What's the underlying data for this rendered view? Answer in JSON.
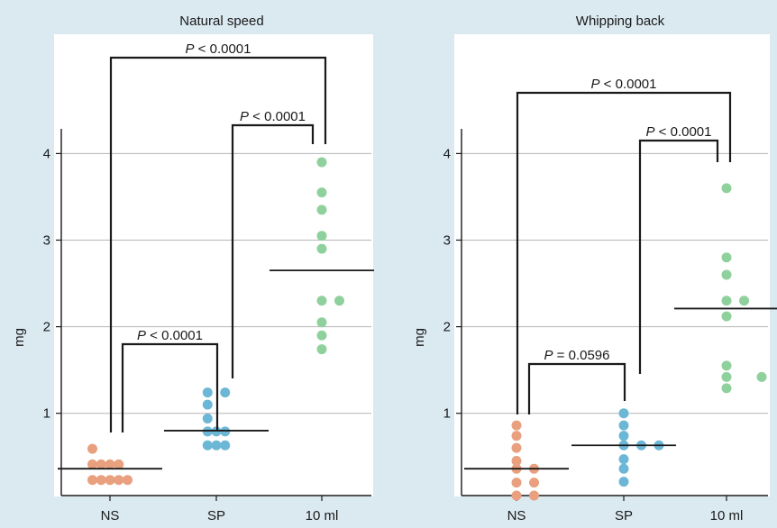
{
  "colors": {
    "background": "#dbe9f1",
    "plot_bg": "#ffffff",
    "grid": "#b5b5b5",
    "axis": "#1a1a1a",
    "ns": "#e8a07e",
    "sp": "#6cb7d6",
    "ml": "#8fd19c"
  },
  "chart_data": [
    {
      "type": "scatter",
      "title": "Natural speed",
      "ylabel": "mg",
      "categories": [
        "NS",
        "SP",
        "10 ml"
      ],
      "yticks": [
        1,
        2,
        3,
        4
      ],
      "ylim": [
        0.1,
        4.3
      ],
      "grid": true,
      "series": [
        {
          "category": "NS",
          "color": "#e8a07e",
          "points": [
            [
              -1,
              0.59
            ],
            [
              -1,
              0.41
            ],
            [
              -0.5,
              0.41
            ],
            [
              0,
              0.41
            ],
            [
              0.5,
              0.41
            ],
            [
              -1,
              0.23
            ],
            [
              -0.5,
              0.23
            ],
            [
              0,
              0.23
            ],
            [
              0.5,
              0.23
            ],
            [
              1,
              0.23
            ]
          ],
          "median": 0.36
        },
        {
          "category": "SP",
          "color": "#6cb7d6",
          "points": [
            [
              -0.5,
              1.24
            ],
            [
              0.5,
              1.24
            ],
            [
              -0.5,
              1.1
            ],
            [
              -0.5,
              0.94
            ],
            [
              -0.5,
              0.79
            ],
            [
              0,
              0.79
            ],
            [
              0.5,
              0.79
            ],
            [
              -0.5,
              0.63
            ],
            [
              0,
              0.63
            ],
            [
              0.5,
              0.63
            ]
          ],
          "median": 0.8
        },
        {
          "category": "10 ml",
          "color": "#8fd19c",
          "points": [
            [
              0,
              3.9
            ],
            [
              0,
              3.55
            ],
            [
              0,
              3.35
            ],
            [
              0,
              3.05
            ],
            [
              0,
              2.9
            ],
            [
              0,
              2.3
            ],
            [
              1,
              2.3
            ],
            [
              0,
              2.05
            ],
            [
              0,
              1.9
            ],
            [
              0,
              1.74
            ]
          ],
          "median": 2.65
        }
      ],
      "comparisons": [
        {
          "from": "NS",
          "to": "SP",
          "label_p": "P",
          "label_rest": " < 0.0001"
        },
        {
          "from": "SP",
          "to": "10 ml",
          "label_p": "P",
          "label_rest": " < 0.0001"
        },
        {
          "from": "NS",
          "to": "10 ml",
          "label_p": "P",
          "label_rest": " < 0.0001"
        }
      ]
    },
    {
      "type": "scatter",
      "title": "Whipping back",
      "ylabel": "mg",
      "categories": [
        "NS",
        "SP",
        "10 ml"
      ],
      "yticks": [
        1,
        2,
        3,
        4
      ],
      "ylim": [
        0.1,
        4.3
      ],
      "grid": true,
      "series": [
        {
          "category": "NS",
          "color": "#e8a07e",
          "points": [
            [
              0,
              0.86
            ],
            [
              0,
              0.74
            ],
            [
              0,
              0.6
            ],
            [
              0,
              0.45
            ],
            [
              0,
              0.36
            ],
            [
              1,
              0.36
            ],
            [
              0,
              0.2
            ],
            [
              1,
              0.2
            ],
            [
              0,
              0.05
            ],
            [
              1,
              0.05
            ]
          ],
          "median": 0.36
        },
        {
          "category": "SP",
          "color": "#6cb7d6",
          "points": [
            [
              0,
              1.0
            ],
            [
              0,
              0.86
            ],
            [
              0,
              0.74
            ],
            [
              0,
              0.63
            ],
            [
              1,
              0.63
            ],
            [
              2,
              0.63
            ],
            [
              0,
              0.47
            ],
            [
              0,
              0.36
            ],
            [
              0,
              0.21
            ]
          ],
          "median": 0.63
        },
        {
          "category": "10 ml",
          "color": "#8fd19c",
          "points": [
            [
              0,
              3.6
            ],
            [
              0,
              2.8
            ],
            [
              0,
              2.6
            ],
            [
              0,
              2.3
            ],
            [
              1,
              2.3
            ],
            [
              0,
              2.12
            ],
            [
              0,
              1.55
            ],
            [
              0,
              1.42
            ],
            [
              2,
              1.42
            ],
            [
              0,
              1.29
            ]
          ],
          "median": 2.21
        }
      ],
      "comparisons": [
        {
          "from": "NS",
          "to": "SP",
          "label_p": "P",
          "label_rest": " = 0.0596"
        },
        {
          "from": "SP",
          "to": "10 ml",
          "label_p": "P",
          "label_rest": " < 0.0001"
        },
        {
          "from": "NS",
          "to": "10 ml",
          "label_p": "P",
          "label_rest": " < 0.0001"
        }
      ]
    }
  ]
}
